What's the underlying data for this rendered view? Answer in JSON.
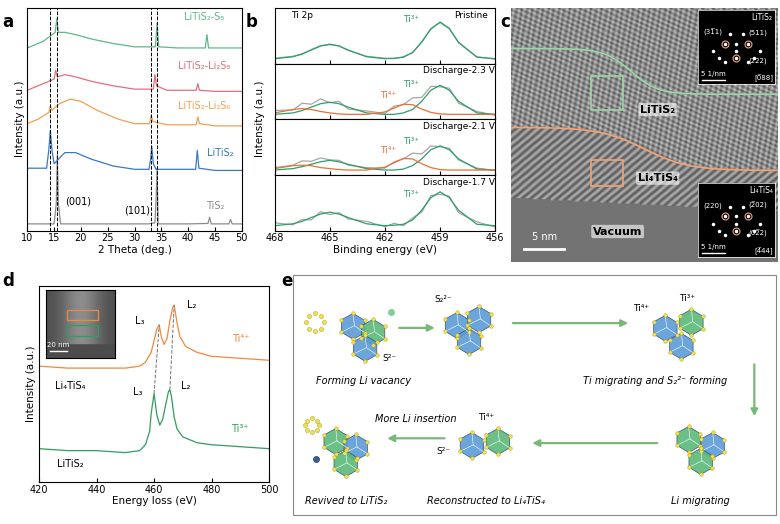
{
  "chart_data": [
    {
      "panel": "a",
      "type": "line",
      "xlabel": "2 Theta (deg.)",
      "ylabel": "Intensity (a.u.)",
      "xlim": [
        10,
        50
      ],
      "xticks": [
        10,
        15,
        20,
        25,
        30,
        35,
        40,
        45,
        50
      ],
      "ylim": [
        0,
        10
      ],
      "tick_labels": "x",
      "series": [
        {
          "color": "#8c8c8c",
          "x": [
            10,
            15.0,
            15.4,
            15.6,
            15.8,
            16.2,
            20,
            31.6,
            32.0,
            32.3,
            32.6,
            33.8,
            34.0,
            34.2,
            34.4,
            40,
            43.7,
            44.0,
            44.3,
            47.6,
            47.9,
            48.2,
            50
          ],
          "values": [
            0.3,
            0.3,
            1.2,
            3.4,
            1.2,
            0.3,
            0.3,
            0.3,
            0.3,
            0.3,
            0.3,
            0.35,
            1.3,
            2.8,
            0.3,
            0.3,
            0.32,
            0.6,
            0.3,
            0.3,
            0.5,
            0.3,
            0.3
          ]
        },
        {
          "color": "#3a78c2",
          "x": [
            10,
            13.6,
            14.0,
            14.3,
            14.6,
            15.0,
            17,
            19,
            22,
            26,
            30,
            32.7,
            33.0,
            33.2,
            33.5,
            34.0,
            36,
            41.4,
            41.7,
            42.0,
            45,
            50
          ],
          "values": [
            2.8,
            2.8,
            3.6,
            4.5,
            3.6,
            3.0,
            3.5,
            3.5,
            3.2,
            2.9,
            2.75,
            2.75,
            3.2,
            3.8,
            3.0,
            2.75,
            2.75,
            2.75,
            3.6,
            2.8,
            2.7,
            2.7
          ]
        },
        {
          "color": "#f0a050",
          "x": [
            10,
            12,
            14.0,
            14.3,
            14.6,
            16,
            18,
            20,
            23,
            27,
            30,
            32.8,
            33.1,
            33.4,
            36,
            41.5,
            41.8,
            42.1,
            45,
            50
          ],
          "values": [
            4.8,
            5.0,
            5.3,
            5.6,
            5.4,
            5.7,
            5.9,
            5.8,
            5.4,
            5.0,
            4.8,
            4.8,
            5.2,
            4.9,
            4.75,
            4.75,
            5.1,
            4.8,
            4.7,
            4.7
          ]
        },
        {
          "color": "#e0707a",
          "x": [
            10,
            12,
            15.0,
            15.3,
            15.6,
            17,
            19,
            22,
            26,
            30,
            33.5,
            33.8,
            34.1,
            36,
            41.5,
            41.8,
            42.1,
            45,
            50
          ],
          "values": [
            6.3,
            6.5,
            6.8,
            7.2,
            6.9,
            7.0,
            6.9,
            6.7,
            6.5,
            6.35,
            6.35,
            7.0,
            6.5,
            6.3,
            6.3,
            6.6,
            6.3,
            6.25,
            6.25
          ]
        },
        {
          "color": "#5fb88a",
          "x": [
            10,
            13,
            15.2,
            15.5,
            15.8,
            17,
            19,
            22,
            26,
            30,
            33.9,
            34.2,
            34.5,
            38,
            43.2,
            43.5,
            43.8,
            47,
            50
          ],
          "values": [
            8.2,
            8.5,
            8.9,
            9.5,
            8.9,
            8.9,
            8.8,
            8.6,
            8.4,
            8.25,
            8.25,
            9.3,
            8.25,
            8.2,
            8.2,
            8.8,
            8.2,
            8.2,
            8.2
          ]
        }
      ],
      "reference_lines": [
        {
          "x": 14.3,
          "line_style": "dashed"
        },
        {
          "x": 15.6,
          "line_style": "dashed"
        },
        {
          "x": 33.0,
          "line_style": "dashed"
        },
        {
          "x": 34.2,
          "line_style": "dashed"
        }
      ],
      "annotations": [
        {
          "text": "LiTiS₂-S₈",
          "x": 43,
          "y": 9.6,
          "color": "#5fb88a"
        },
        {
          "text": "LiTiS₂-Li₂S₈",
          "x": 43,
          "y": 7.4,
          "color": "#e0707a"
        },
        {
          "text": "LiTiS₂-Li₂S₆",
          "x": 43,
          "y": 5.6,
          "color": "#f0a050"
        },
        {
          "text": "LiTiS₂",
          "x": 46,
          "y": 3.5,
          "color": "#3a78c2"
        },
        {
          "text": "TiS₂",
          "x": 45,
          "y": 1.1,
          "color": "#8c8c8c"
        },
        {
          "text": "(001)",
          "x": 19.5,
          "y": 1.3
        },
        {
          "text": "(101)",
          "x": 30.5,
          "y": 0.9
        }
      ]
    },
    {
      "panel": "b",
      "type": "line",
      "xlabel": "Binding energy (eV)",
      "ylabel": "Intensity (a.u.)",
      "xlim": [
        468,
        456
      ],
      "xticks": [
        468,
        465,
        462,
        459,
        456
      ],
      "ylim": [
        0,
        1.15
      ],
      "tick_labels": "x",
      "x": [
        468,
        467,
        466.5,
        466,
        465.5,
        465,
        464.5,
        464,
        463,
        462,
        461.5,
        461,
        460.5,
        460,
        459.5,
        459,
        458.5,
        458,
        457,
        456
      ],
      "subplots": [
        {
          "annotations": [
            {
              "text": "Ti 2p",
              "x": 466.5,
              "y": 1.0
            },
            {
              "text": "Pristine",
              "x": 457.3,
              "y": 1.0
            },
            {
              "text": "Ti³⁺",
              "x": 460.6,
              "y": 0.9,
              "color": "#2e9e6a"
            }
          ],
          "series": [
            {
              "color": "#a6a6a6",
              "values": [
                0.11,
                0.15,
                0.19,
                0.29,
                0.37,
                0.39,
                0.37,
                0.27,
                0.15,
                0.11,
                0.1,
                0.14,
                0.22,
                0.45,
                0.71,
                0.86,
                0.73,
                0.43,
                0.14,
                0.09
              ]
            },
            {
              "color": "#2e9e6a",
              "values": [
                0.1,
                0.14,
                0.2,
                0.28,
                0.36,
                0.4,
                0.36,
                0.28,
                0.14,
                0.1,
                0.11,
                0.13,
                0.23,
                0.44,
                0.72,
                0.85,
                0.72,
                0.44,
                0.13,
                0.1
              ]
            }
          ]
        },
        {
          "annotations": [
            {
              "text": "Discharge-2.3 V",
              "x": 458,
              "y": 1.0
            },
            {
              "text": "Ti⁴⁺",
              "x": 461.8,
              "y": 0.5,
              "color": "#e8703a"
            },
            {
              "text": "Ti³⁺",
              "x": 460.6,
              "y": 0.72,
              "color": "#2e9e6a"
            }
          ],
          "series": [
            {
              "color": "#a6a6a6",
              "values": [
                0.18,
                0.19,
                0.33,
                0.31,
                0.42,
                0.34,
                0.37,
                0.21,
                0.17,
                0.12,
                0.27,
                0.3,
                0.44,
                0.45,
                0.68,
                0.67,
                0.64,
                0.33,
                0.16,
                0.08
              ]
            },
            {
              "color": "#2e9e6a",
              "values": [
                0.1,
                0.13,
                0.18,
                0.25,
                0.32,
                0.35,
                0.32,
                0.25,
                0.13,
                0.1,
                0.1,
                0.13,
                0.2,
                0.37,
                0.6,
                0.7,
                0.6,
                0.37,
                0.13,
                0.1
              ]
            },
            {
              "color": "#e8703a",
              "values": [
                0.13,
                0.2,
                0.22,
                0.2,
                0.16,
                0.13,
                0.11,
                0.1,
                0.1,
                0.15,
                0.23,
                0.31,
                0.3,
                0.21,
                0.14,
                0.11,
                0.1,
                0.1,
                0.1,
                0.1
              ]
            }
          ]
        },
        {
          "annotations": [
            {
              "text": "Discharge-2.1 V",
              "x": 458,
              "y": 1.0
            },
            {
              "text": "Ti⁴⁺",
              "x": 461.8,
              "y": 0.5,
              "color": "#e8703a"
            },
            {
              "text": "Ti³⁺",
              "x": 460.6,
              "y": 0.68,
              "color": "#2e9e6a"
            }
          ],
          "series": [
            {
              "color": "#a6a6a6",
              "values": [
                0.15,
                0.2,
                0.29,
                0.28,
                0.35,
                0.31,
                0.3,
                0.2,
                0.15,
                0.14,
                0.27,
                0.33,
                0.45,
                0.43,
                0.6,
                0.58,
                0.55,
                0.31,
                0.14,
                0.09
              ]
            },
            {
              "color": "#2e9e6a",
              "values": [
                0.1,
                0.13,
                0.17,
                0.22,
                0.27,
                0.3,
                0.27,
                0.22,
                0.13,
                0.1,
                0.1,
                0.12,
                0.19,
                0.33,
                0.52,
                0.6,
                0.52,
                0.33,
                0.12,
                0.1
              ]
            },
            {
              "color": "#e8703a",
              "values": [
                0.13,
                0.19,
                0.2,
                0.19,
                0.15,
                0.13,
                0.11,
                0.1,
                0.1,
                0.16,
                0.25,
                0.34,
                0.33,
                0.23,
                0.15,
                0.11,
                0.1,
                0.1,
                0.1,
                0.1
              ]
            }
          ]
        },
        {
          "annotations": [
            {
              "text": "Discharge-1.7 V",
              "x": 458,
              "y": 1.0
            },
            {
              "text": "Ti³⁺",
              "x": 460.6,
              "y": 0.75,
              "color": "#2e9e6a"
            }
          ],
          "series": [
            {
              "color": "#a6a6a6",
              "values": [
                0.16,
                0.12,
                0.23,
                0.22,
                0.39,
                0.33,
                0.37,
                0.24,
                0.19,
                0.08,
                0.15,
                0.1,
                0.26,
                0.38,
                0.72,
                0.75,
                0.71,
                0.37,
                0.18,
                0.07
              ]
            },
            {
              "color": "#2e9e6a",
              "values": [
                0.1,
                0.14,
                0.19,
                0.27,
                0.34,
                0.38,
                0.34,
                0.27,
                0.14,
                0.1,
                0.11,
                0.13,
                0.22,
                0.42,
                0.68,
                0.8,
                0.68,
                0.42,
                0.13,
                0.1
              ]
            }
          ]
        }
      ]
    },
    {
      "panel": "d",
      "type": "line",
      "xlabel": "Energy loss (eV)",
      "ylabel": "Intensity (a.u.)",
      "xlim": [
        420,
        500
      ],
      "xticks": [
        420,
        440,
        460,
        480,
        500
      ],
      "ylim": [
        0,
        10
      ],
      "tick_labels": "x",
      "series": [
        {
          "color": "#f0883e",
          "x": [
            420,
            430,
            440,
            450,
            455,
            457,
            459,
            460,
            461,
            461.8,
            462.5,
            463.5,
            464.5,
            465.5,
            466.5,
            467,
            468,
            469,
            471,
            475,
            480,
            490,
            500
          ],
          "values": [
            5.9,
            5.8,
            5.8,
            5.8,
            5.9,
            6.1,
            6.6,
            7.2,
            7.8,
            8.0,
            7.4,
            7.0,
            7.3,
            8.2,
            8.9,
            9.0,
            8.1,
            7.4,
            6.9,
            6.6,
            6.4,
            6.3,
            6.2
          ]
        },
        {
          "color": "#2f9e5e",
          "x": [
            420,
            430,
            440,
            450,
            455,
            457,
            458.5,
            459,
            460,
            461,
            462,
            463,
            464,
            465,
            465.5,
            466,
            467,
            468,
            470,
            475,
            480,
            490,
            500
          ],
          "values": [
            1.7,
            1.6,
            1.6,
            1.5,
            1.6,
            1.9,
            2.6,
            3.5,
            4.5,
            3.4,
            2.9,
            3.2,
            3.9,
            4.6,
            4.7,
            4.4,
            3.3,
            2.7,
            2.3,
            2.0,
            1.9,
            1.8,
            1.7
          ]
        }
      ],
      "guide_lines": [
        {
          "x": [
            460,
            461.8
          ],
          "y": [
            4.5,
            8.0
          ],
          "line_style": "dashed"
        },
        {
          "x": [
            465.5,
            467
          ],
          "y": [
            4.7,
            9.0
          ],
          "line_style": "dashed"
        }
      ],
      "annotations": [
        {
          "text": "Li₄TiS₄",
          "x": 431,
          "y": 4.9
        },
        {
          "text": "LiTiS₂",
          "x": 431,
          "y": 0.9
        },
        {
          "text": "Ti⁴⁺",
          "x": 490,
          "y": 7.3,
          "color": "#f0883e"
        },
        {
          "text": "Ti³⁺",
          "x": 490,
          "y": 2.7,
          "color": "#2f9e5e"
        },
        {
          "text": "L₃",
          "x": 455,
          "y": 8.2
        },
        {
          "text": "L₂",
          "x": 473,
          "y": 9.0
        },
        {
          "text": "L₃",
          "x": 454.5,
          "y": 4.6
        },
        {
          "text": "L₂",
          "x": 471,
          "y": 4.9
        }
      ],
      "inset": {
        "scale_bar": "20 nm"
      }
    }
  ],
  "image": {
    "panel": "c",
    "regions": [
      "LiTiS₂",
      "Li₄TiS₄",
      "Vacuum"
    ],
    "scale_bar": "5 nm",
    "insets": [
      {
        "title": "LiTiS₂",
        "spots": [
          "(31̅1)",
          "(511)",
          "(222)"
        ],
        "zone_axis": "[0̅88]",
        "scale_bar": "5 1/nm"
      },
      {
        "title": "Li₄TiS₄",
        "spots": [
          "(220)",
          "(2̅02)",
          "(02̅2)"
        ],
        "zone_axis": "[4̅44]",
        "scale_bar": "5 1/nm"
      }
    ]
  },
  "schematic": {
    "panel": "e",
    "steps": [
      {
        "caption": "Forming Li vacancy",
        "labels": [
          "S²⁻"
        ]
      },
      {
        "labels": [
          "S₂²⁻"
        ]
      },
      {
        "caption": "Ti migrating and S₂²⁻ forming",
        "labels": [
          "Ti³⁺",
          "Ti⁴⁺"
        ]
      },
      {
        "caption": "Li migrating"
      },
      {
        "caption": "Reconstructed to Li₄TiS₄",
        "labels": [
          "Ti⁴⁺",
          "S²⁻"
        ]
      },
      {
        "caption": "Revived to LiTiS₂"
      }
    ],
    "arrow_label": "More Li insertion"
  }
}
